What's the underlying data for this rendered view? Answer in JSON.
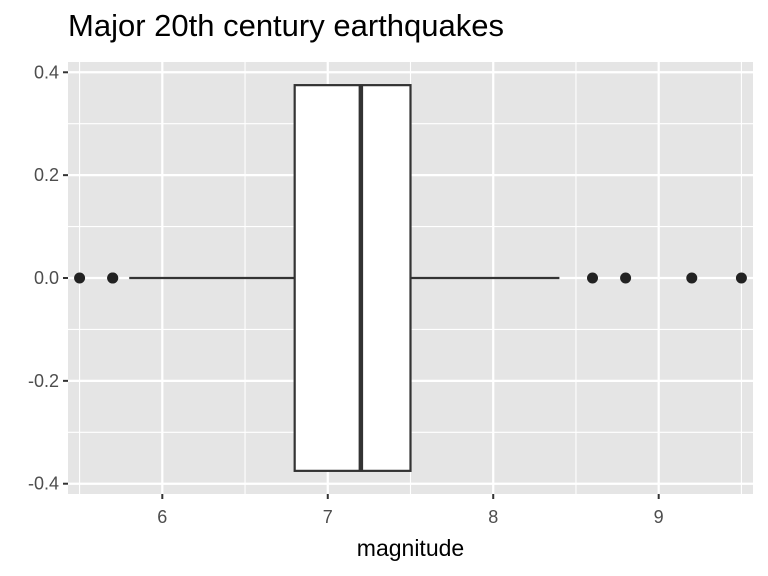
{
  "chart_data": {
    "type": "boxplot",
    "title": "Major 20th century earthquakes",
    "xlabel": "magnitude",
    "ylabel": "",
    "xlim": [
      5.43,
      9.57
    ],
    "ylim": [
      -0.42,
      0.42
    ],
    "x_major_ticks": [
      6,
      7,
      8,
      9
    ],
    "x_tick_labels": [
      "6",
      "7",
      "8",
      "9"
    ],
    "y_major_ticks": [
      -0.4,
      -0.2,
      0.0,
      0.2,
      0.4
    ],
    "y_tick_labels": [
      "-0.4",
      "-0.2",
      "0.0",
      "0.2",
      "0.4"
    ],
    "grid": true,
    "box": {
      "whisker_low": 5.8,
      "q1": 6.8,
      "median": 7.2,
      "q3": 7.5,
      "whisker_high": 8.4,
      "y_center": 0.0,
      "half_width": 0.375
    },
    "outliers": [
      5.5,
      5.7,
      5.7,
      8.6,
      8.8,
      9.2,
      9.5
    ],
    "colors": {
      "panel": "#e5e5e5",
      "grid_major": "#ffffff",
      "box_fill": "#ffffff",
      "box_line": "#333333",
      "points": "#222222"
    }
  }
}
